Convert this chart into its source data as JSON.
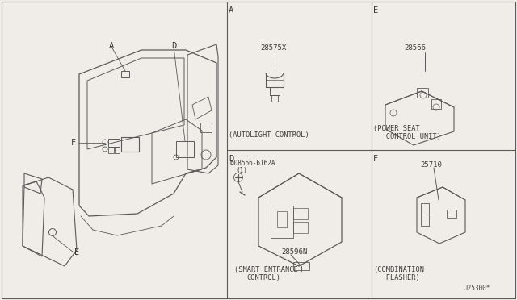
{
  "bg_color": "#f0ede8",
  "line_color": "#5a5a5a",
  "text_color": "#3a3a3a",
  "part_number_A": "28575X",
  "label_A": "(AUTOLIGHT CONTROL)",
  "part_number_D": "28596N",
  "screw_D": "©08566-6162A",
  "screw_D2": "(1)",
  "label_D1": "(SMART ENTRANCE",
  "label_D2": "CONTROL)",
  "part_number_E": "28566",
  "label_E1": "(POWER SEAT",
  "label_E2": "   CONTROL UNIT)",
  "part_number_F": "25710",
  "label_F1": "(COMBINATION",
  "label_F2": "   FLASHER)",
  "footer": "J25300*",
  "vx1": 281,
  "vx2": 460,
  "hy": 186
}
